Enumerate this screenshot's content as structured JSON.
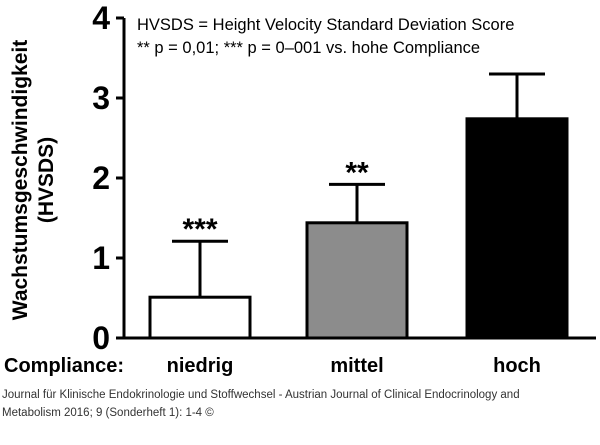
{
  "chart_data": {
    "type": "bar",
    "categories": [
      "niedrig",
      "mittel",
      "hoch"
    ],
    "values": [
      0.51,
      1.44,
      2.74
    ],
    "errors": [
      0.7,
      0.48,
      0.56
    ],
    "bar_colors": [
      "#ffffff",
      "#8c8c8c",
      "#000000"
    ],
    "significance": [
      "***",
      "**",
      ""
    ],
    "ylabel_line1": "Wachstumsgeschwindigkeit",
    "ylabel_line2": "(HVSDS)",
    "xlabel": "Compliance:",
    "ylim": [
      0,
      4
    ],
    "yticks": [
      "0",
      "1",
      "2",
      "3",
      "4"
    ],
    "annotation_line1": "HVSDS = Height Velocity Standard Deviation Score",
    "annotation_line2": "** p = 0,01; *** p = 0–001 vs. hohe Compliance"
  },
  "caption": {
    "line1": "Journal für Klinische Endokrinologie und Stoffwechsel - Austrian Journal of Clinical Endocrinology and",
    "line2": "Metabolism 2016; 9 (Sonderheft 1): 1-4 ©"
  }
}
